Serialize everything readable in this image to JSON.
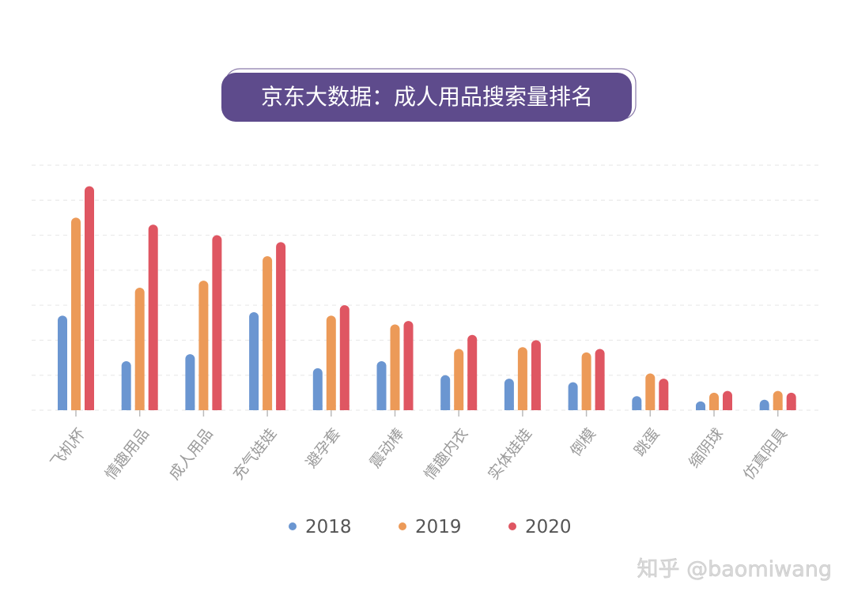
{
  "chart_data": {
    "type": "bar",
    "title": "京东大数据：成人用品搜索量排名",
    "xlabel": "",
    "ylabel": "",
    "categories": [
      "飞机杯",
      "情趣用品",
      "成人用品",
      "充气娃娃",
      "避孕套",
      "震动棒",
      "情趣内衣",
      "实体娃娃",
      "倒模",
      "跳蛋",
      "缩阴球",
      "仿真阳具"
    ],
    "series": [
      {
        "name": "2018",
        "color": "#6b96d1",
        "values": [
          27,
          14,
          16,
          28,
          12,
          14,
          10,
          9,
          8,
          4,
          2.5,
          3
        ]
      },
      {
        "name": "2019",
        "color": "#ec9a58",
        "values": [
          55,
          35,
          37,
          44,
          27,
          24.5,
          17.5,
          18,
          16.5,
          10.5,
          5,
          5.5
        ]
      },
      {
        "name": "2020",
        "color": "#df5662",
        "values": [
          64,
          53,
          50,
          48,
          30,
          25.5,
          21.5,
          20,
          17.5,
          9,
          5.5,
          5
        ]
      }
    ],
    "ylim": [
      0,
      70
    ],
    "grid": true,
    "y_tick_labels_shown": false,
    "legend": "bottom-center",
    "title_box_color": "#5e4b8c"
  },
  "watermark": "知乎 @baomiwang"
}
